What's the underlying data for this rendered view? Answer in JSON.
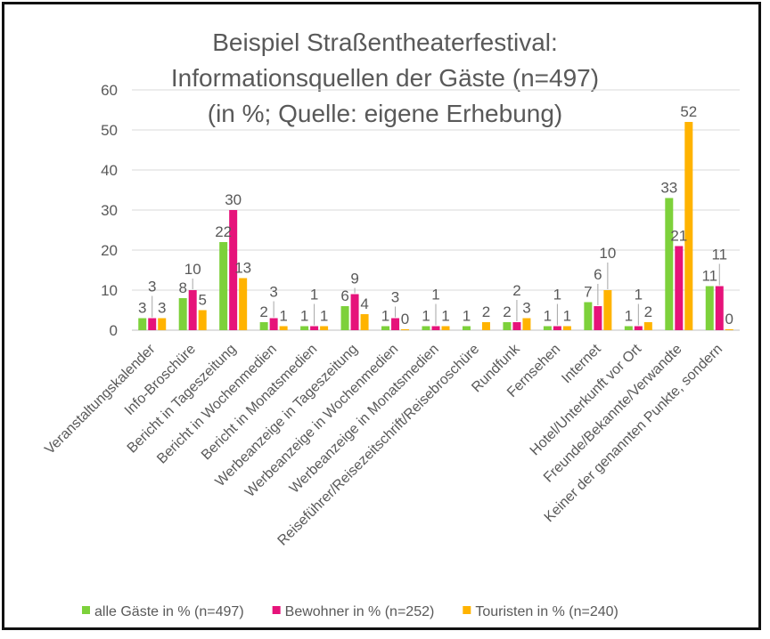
{
  "chart_data": {
    "type": "bar",
    "title": [
      "Beispiel Straßentheaterfestival:",
      "Informationsquellen der Gäste (n=497)",
      "(in %; Quelle: eigene Erhebung)"
    ],
    "xlabel": "",
    "ylabel": "",
    "ylim": [
      0,
      60
    ],
    "yticks": [
      "0",
      "10",
      "20",
      "30",
      "40",
      "50",
      "60"
    ],
    "grid": true,
    "legend_position": "bottom",
    "categories": [
      "Veranstaltungskalender",
      "Info-Broschüre",
      "Bericht in Tageszeitung",
      "Bericht in Wochenmedien",
      "Bericht in Monatsmedien",
      "Werbeanzeige in Tageszeitung",
      "Werbeanzeige in Wochenmedien",
      "Werbeanzeige in Monatsmedien",
      "Reiseführer/Reisezeitschrift/Reisebroschüre",
      "Rundfunk",
      "Fernsehen",
      "Internet",
      "Hotel/Unterkunft vor Ort",
      "Freunde/Bekannte/Verwandte",
      "Keiner der genannten Punkte, sondern"
    ],
    "series": [
      {
        "name": "alle Gäste in % (n=497)",
        "color": "#7DD13B",
        "values": [
          3,
          8,
          22,
          2,
          1,
          6,
          1,
          1,
          1,
          2,
          1,
          7,
          1,
          33,
          11
        ]
      },
      {
        "name": "Bewohner in % (n=252)",
        "color": "#E6137A",
        "values": [
          3,
          10,
          30,
          3,
          1,
          9,
          3,
          1,
          null,
          2,
          1,
          6,
          1,
          21,
          11
        ]
      },
      {
        "name": "Touristen in % (n=240)",
        "color": "#FFB300",
        "values": [
          3,
          5,
          13,
          1,
          1,
          4,
          0,
          1,
          2,
          3,
          1,
          10,
          2,
          52,
          0
        ]
      }
    ]
  }
}
